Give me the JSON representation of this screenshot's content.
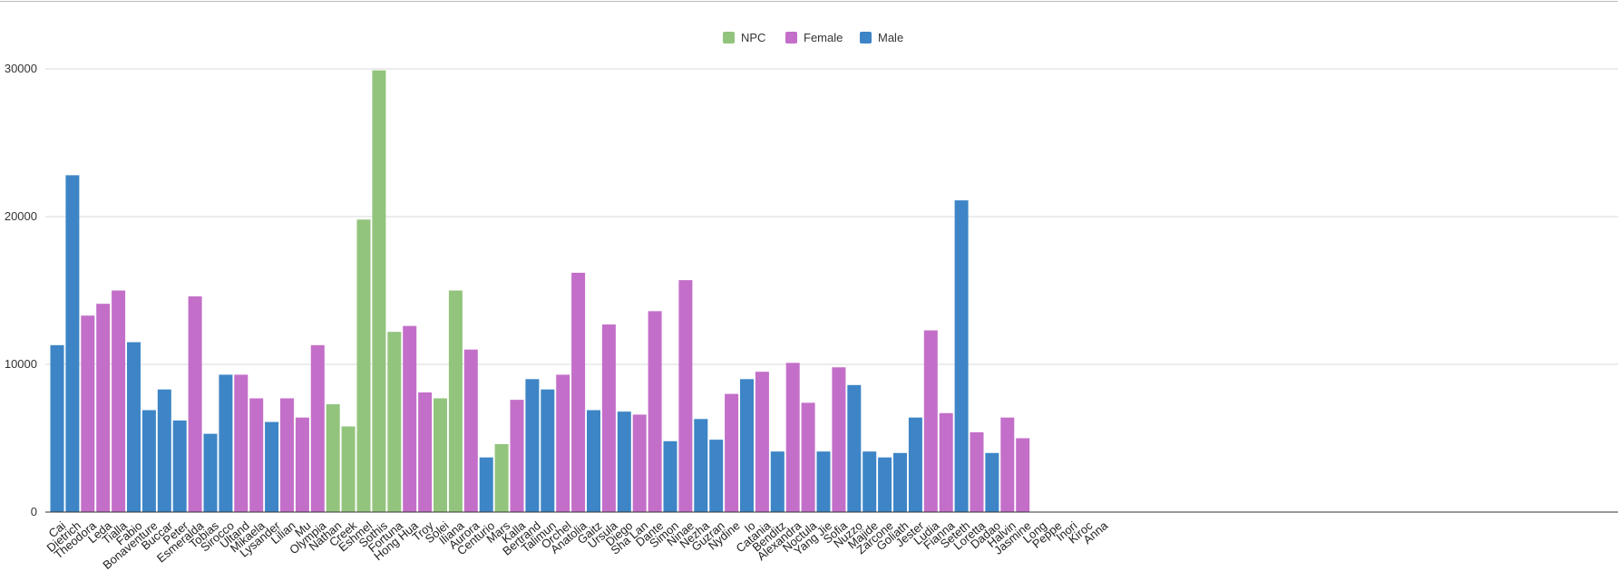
{
  "chart_data": {
    "type": "bar",
    "title": "",
    "xlabel": "",
    "ylabel": "",
    "ylim": [
      0,
      30000
    ],
    "yticks": [
      0,
      10000,
      20000,
      30000
    ],
    "grid": true,
    "legend_position": "top-center",
    "legend": [
      {
        "name": "NPC",
        "color": "#93c47d"
      },
      {
        "name": "Female",
        "color": "#c36fc9"
      },
      {
        "name": "Male",
        "color": "#3d85c6"
      }
    ],
    "bars": [
      {
        "category": "Cai",
        "value": 11300,
        "group": "Male"
      },
      {
        "category": "Dietrich",
        "value": 22800,
        "group": "Male"
      },
      {
        "category": "Theodora",
        "value": 13300,
        "group": "Female"
      },
      {
        "category": "Leda",
        "value": 14100,
        "group": "Female"
      },
      {
        "category": "Tialla",
        "value": 15000,
        "group": "Female"
      },
      {
        "category": "Fabio",
        "value": 11500,
        "group": "Male"
      },
      {
        "category": "Bonaventure",
        "value": 6900,
        "group": "Male"
      },
      {
        "category": "Buccar",
        "value": 8300,
        "group": "Male"
      },
      {
        "category": "Peter",
        "value": 6200,
        "group": "Male"
      },
      {
        "category": "Esmeralda",
        "value": 14600,
        "group": "Female"
      },
      {
        "category": "Tobias",
        "value": 5300,
        "group": "Male"
      },
      {
        "category": "Sirocco",
        "value": 9300,
        "group": "Male"
      },
      {
        "category": "Ultand",
        "value": 9300,
        "group": "Female"
      },
      {
        "category": "Mikaela",
        "value": 7700,
        "group": "Female"
      },
      {
        "category": "Lysander",
        "value": 6100,
        "group": "Male"
      },
      {
        "category": "Lilian",
        "value": 7700,
        "group": "Female"
      },
      {
        "category": "Mu",
        "value": 6400,
        "group": "Female"
      },
      {
        "category": "Olympia",
        "value": 11300,
        "group": "Female"
      },
      {
        "category": "Nathan",
        "value": 7300,
        "group": "NPC"
      },
      {
        "category": "Creek",
        "value": 5800,
        "group": "NPC"
      },
      {
        "category": "Eshmel",
        "value": 19800,
        "group": "NPC"
      },
      {
        "category": "Sothis",
        "value": 29900,
        "group": "NPC"
      },
      {
        "category": "Fortuna",
        "value": 12200,
        "group": "NPC"
      },
      {
        "category": "Hong Hua",
        "value": 12600,
        "group": "Female"
      },
      {
        "category": "Troy",
        "value": 8100,
        "group": "Female"
      },
      {
        "category": "Solei",
        "value": 7700,
        "group": "NPC"
      },
      {
        "category": "Iliana",
        "value": 15000,
        "group": "NPC"
      },
      {
        "category": "Aurora",
        "value": 11000,
        "group": "Female"
      },
      {
        "category": "Centurio",
        "value": 3700,
        "group": "Male"
      },
      {
        "category": "Mars",
        "value": 4600,
        "group": "NPC"
      },
      {
        "category": "Kalla",
        "value": 7600,
        "group": "Female"
      },
      {
        "category": "Bertrand",
        "value": 9000,
        "group": "Male"
      },
      {
        "category": "Talimun",
        "value": 8300,
        "group": "Male"
      },
      {
        "category": "Orchel",
        "value": 9300,
        "group": "Female"
      },
      {
        "category": "Anatolia",
        "value": 16200,
        "group": "Female"
      },
      {
        "category": "Gaitz",
        "value": 6900,
        "group": "Male"
      },
      {
        "category": "Ursula",
        "value": 12700,
        "group": "Female"
      },
      {
        "category": "Diego",
        "value": 6800,
        "group": "Male"
      },
      {
        "category": "Sha Lan",
        "value": 6600,
        "group": "Female"
      },
      {
        "category": "Dante",
        "value": 13600,
        "group": "Female"
      },
      {
        "category": "Simon",
        "value": 4800,
        "group": "Male"
      },
      {
        "category": "Ninae",
        "value": 15700,
        "group": "Female"
      },
      {
        "category": "Nezha",
        "value": 6300,
        "group": "Male"
      },
      {
        "category": "Guzran",
        "value": 4900,
        "group": "Male"
      },
      {
        "category": "Nydine",
        "value": 8000,
        "group": "Female"
      },
      {
        "category": "Io",
        "value": 9000,
        "group": "Male"
      },
      {
        "category": "Catania",
        "value": 9500,
        "group": "Female"
      },
      {
        "category": "Benditz",
        "value": 4100,
        "group": "Male"
      },
      {
        "category": "Alexandra",
        "value": 10100,
        "group": "Female"
      },
      {
        "category": "Noctula",
        "value": 7400,
        "group": "Female"
      },
      {
        "category": "Yang Jie",
        "value": 4100,
        "group": "Male"
      },
      {
        "category": "Sofia",
        "value": 9800,
        "group": "Female"
      },
      {
        "category": "Nuzzo",
        "value": 8600,
        "group": "Male"
      },
      {
        "category": "Majide",
        "value": 4100,
        "group": "Male"
      },
      {
        "category": "Zarcone",
        "value": 3700,
        "group": "Male"
      },
      {
        "category": "Goliath",
        "value": 4000,
        "group": "Male"
      },
      {
        "category": "Jester",
        "value": 6400,
        "group": "Male"
      },
      {
        "category": "Ludia",
        "value": 12300,
        "group": "Female"
      },
      {
        "category": "Fianna",
        "value": 6700,
        "group": "Female"
      },
      {
        "category": "Seteth",
        "value": 21100,
        "group": "Male"
      },
      {
        "category": "Loretta",
        "value": 5400,
        "group": "Female"
      },
      {
        "category": "Dadao",
        "value": 4000,
        "group": "Male"
      },
      {
        "category": "Halvin",
        "value": 6400,
        "group": "Female"
      },
      {
        "category": "Jasmine",
        "value": 5000,
        "group": "Female"
      },
      {
        "category": "Long",
        "value": 0,
        "group": "Male"
      },
      {
        "category": "Peppe",
        "value": 0,
        "group": "Male"
      },
      {
        "category": "Inori",
        "value": 0,
        "group": "Female"
      },
      {
        "category": "Kiroc",
        "value": 0,
        "group": "Male"
      },
      {
        "category": "Anna",
        "value": 0,
        "group": "Female"
      }
    ]
  }
}
